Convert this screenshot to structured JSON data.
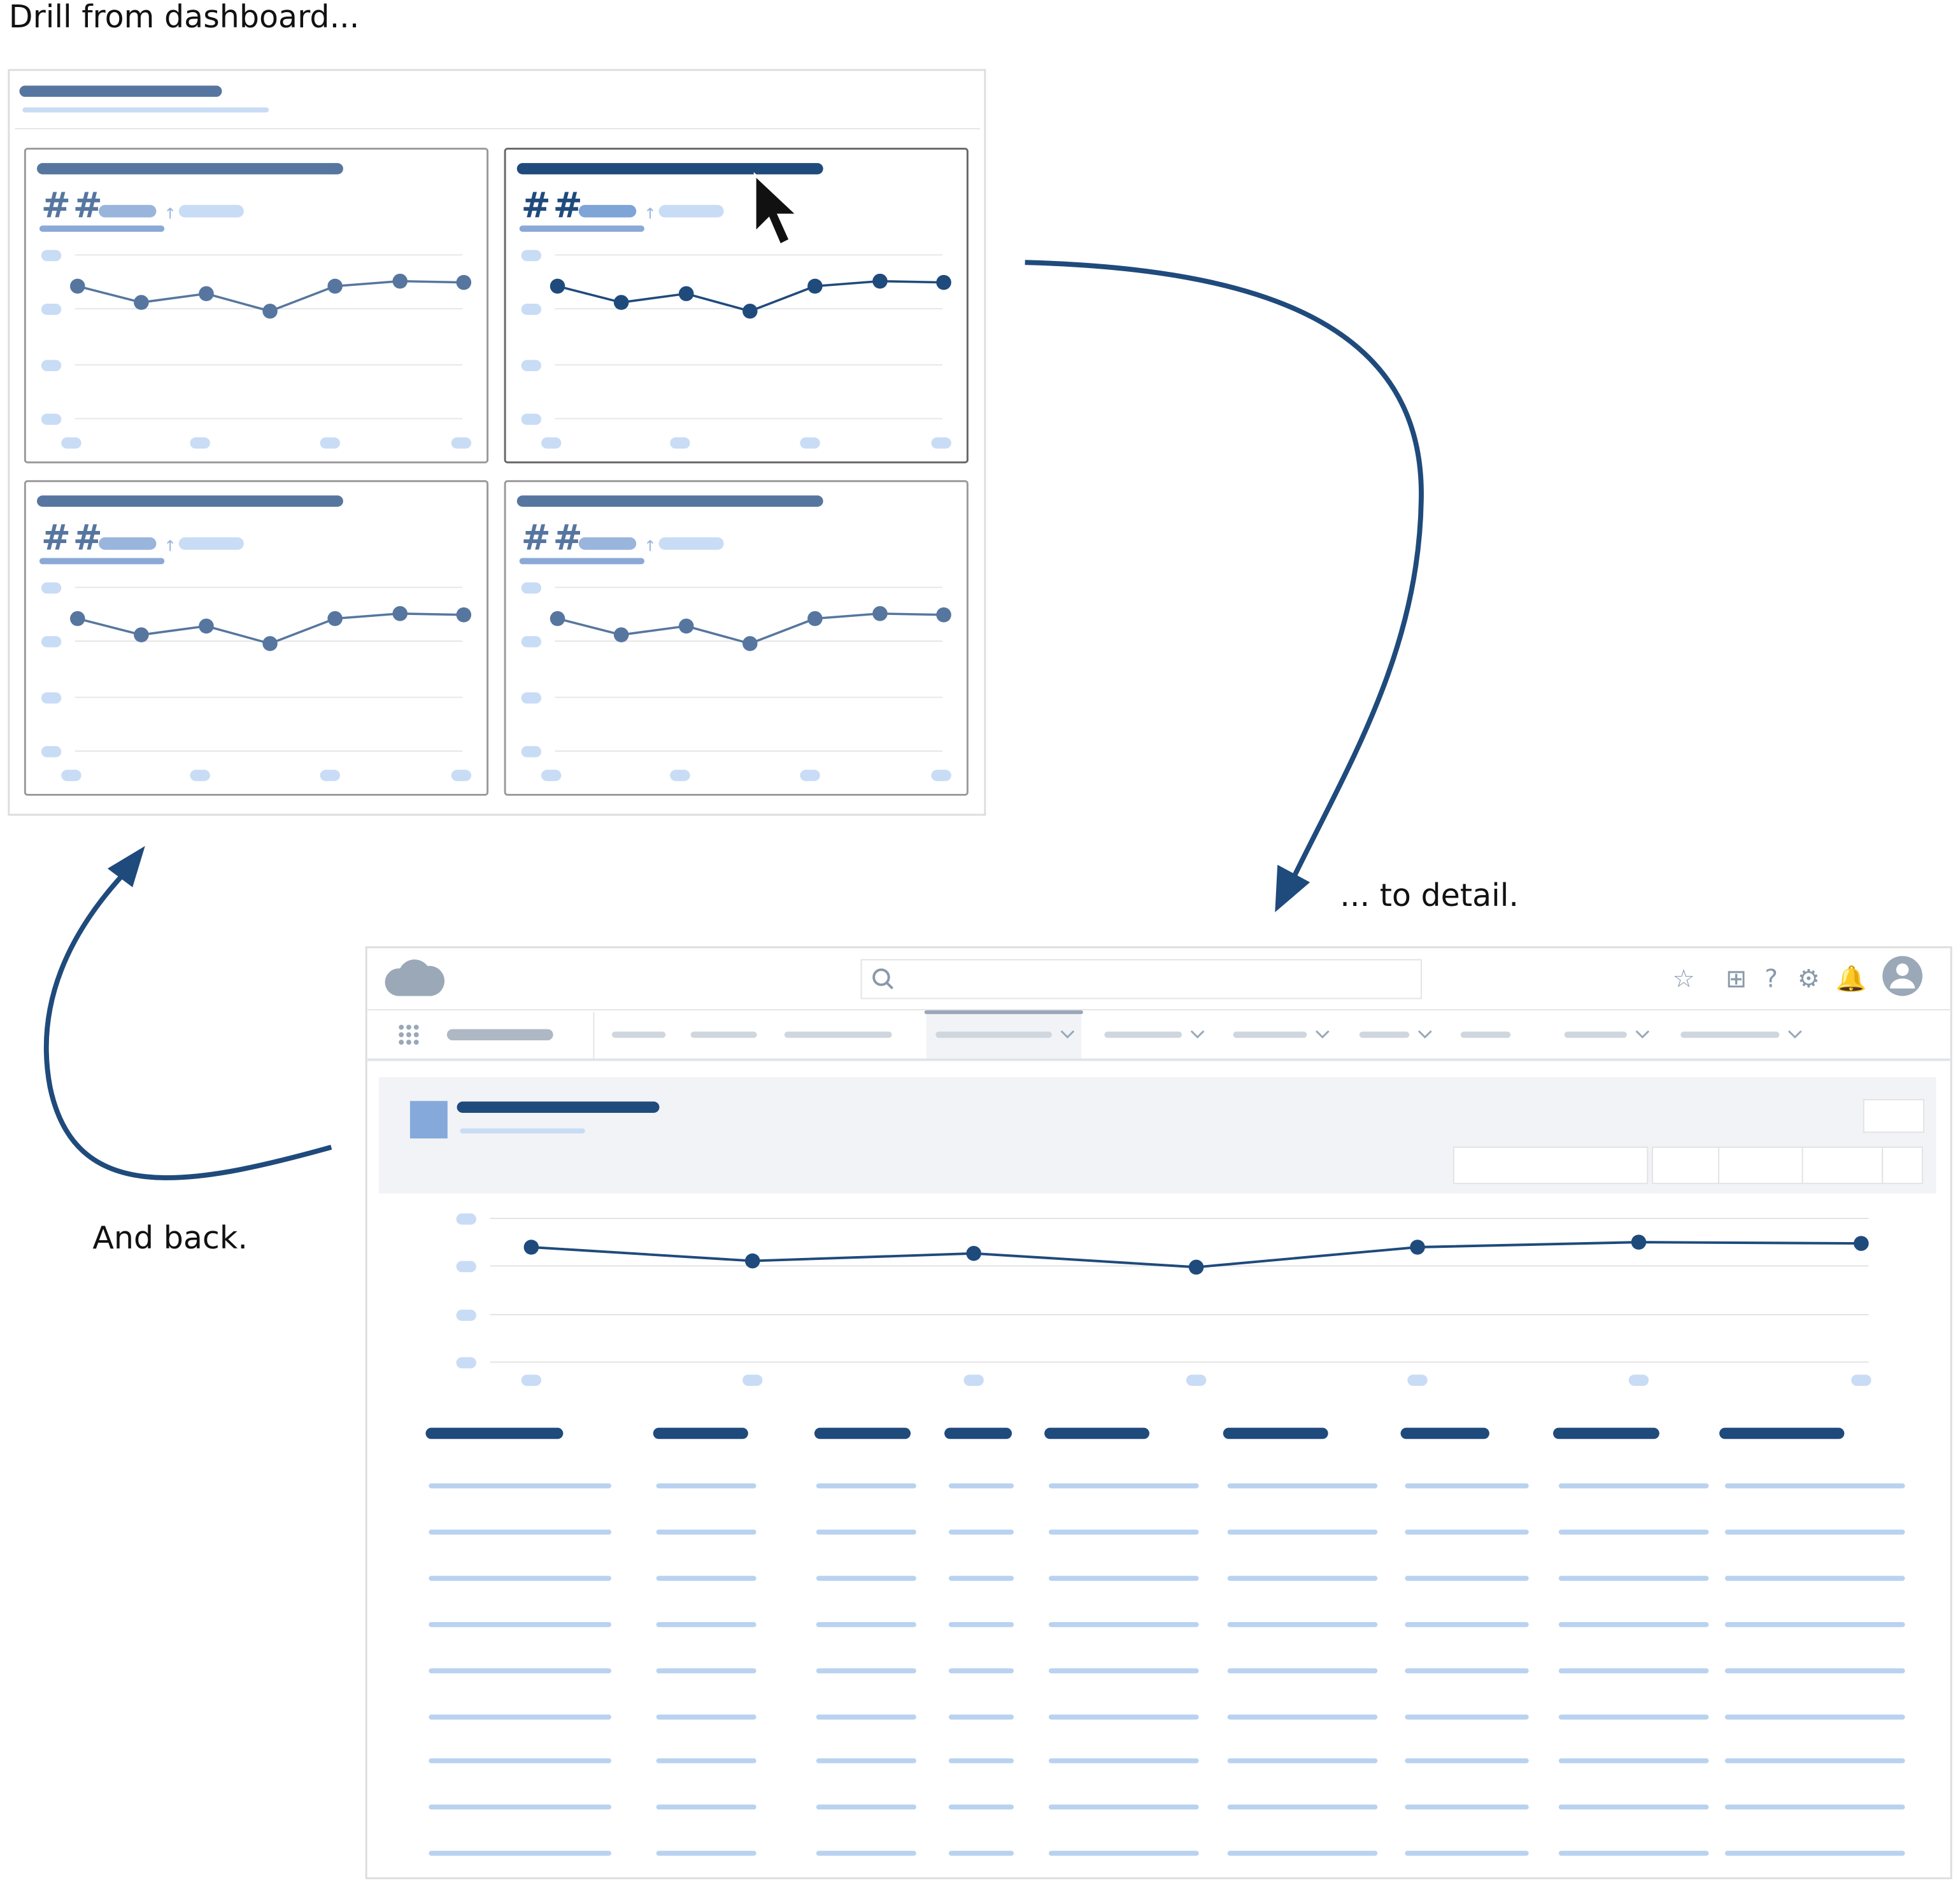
{
  "captions": {
    "top": "Drill from dashboard...",
    "right": "... to detail.",
    "left": "And back."
  },
  "dashboard": {
    "tiles": [
      {
        "metric": "##"
      },
      {
        "metric": "##"
      },
      {
        "metric": "##"
      },
      {
        "metric": "##"
      }
    ]
  }
}
